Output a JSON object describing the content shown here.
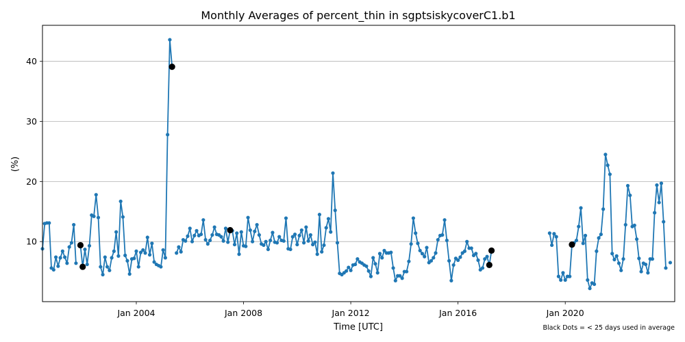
{
  "chart_data": {
    "type": "line",
    "title": "Monthly Averages of percent_thin in sgptsiskycoverC1.b1",
    "xlabel": "Time [UTC]",
    "ylabel": "(%)",
    "note": "Black Dots = < 25 days used in average",
    "xlim": [
      "2000-07",
      "2024-02"
    ],
    "ylim": [
      0,
      46
    ],
    "yticks": [
      10,
      20,
      30,
      40
    ],
    "xticks": [
      {
        "date": "2004-01",
        "label": "Jan 2004"
      },
      {
        "date": "2008-01",
        "label": "Jan 2008"
      },
      {
        "date": "2012-01",
        "label": "Jan 2012"
      },
      {
        "date": "2016-01",
        "label": "Jan 2016"
      },
      {
        "date": "2020-01",
        "label": "Jan 2020"
      }
    ],
    "grid": {
      "y": true,
      "x": false
    },
    "series": [
      {
        "color": "#1f77b4",
        "points": [
          [
            "2000-07",
            8.8
          ],
          [
            "2000-08",
            13.0
          ],
          [
            "2000-09",
            13.1
          ],
          [
            "2000-10",
            13.1
          ],
          [
            "2000-11",
            5.6
          ],
          [
            "2000-12",
            5.3
          ],
          [
            "2001-01",
            7.4
          ],
          [
            "2001-02",
            5.9
          ],
          [
            "2001-03",
            7.3
          ],
          [
            "2001-04",
            8.4
          ],
          [
            "2001-05",
            7.4
          ],
          [
            "2001-06",
            6.4
          ],
          [
            "2001-07",
            9.1
          ],
          [
            "2001-08",
            9.8
          ],
          [
            "2001-09",
            12.8
          ],
          [
            "2001-10",
            6.4
          ],
          null,
          [
            "2001-12",
            9.4
          ],
          [
            "2002-01",
            5.8
          ],
          [
            "2002-02",
            8.7
          ],
          [
            "2002-03",
            6.2
          ],
          [
            "2002-04",
            9.3
          ],
          [
            "2002-05",
            14.4
          ],
          [
            "2002-06",
            14.2
          ],
          [
            "2002-07",
            17.8
          ],
          [
            "2002-08",
            14.0
          ],
          [
            "2002-09",
            5.8
          ],
          [
            "2002-10",
            4.5
          ],
          [
            "2002-11",
            7.4
          ],
          [
            "2002-12",
            5.8
          ],
          [
            "2003-01",
            5.2
          ],
          [
            "2003-02",
            7.3
          ],
          [
            "2003-03",
            8.4
          ],
          [
            "2003-04",
            11.6
          ],
          [
            "2003-05",
            7.6
          ],
          [
            "2003-06",
            16.7
          ],
          [
            "2003-07",
            14.1
          ],
          [
            "2003-08",
            7.7
          ],
          [
            "2003-09",
            6.8
          ],
          [
            "2003-10",
            4.6
          ],
          [
            "2003-11",
            7.1
          ],
          [
            "2003-12",
            7.2
          ],
          [
            "2004-01",
            8.4
          ],
          [
            "2004-02",
            5.8
          ],
          [
            "2004-03",
            8.2
          ],
          [
            "2004-04",
            8.6
          ],
          [
            "2004-05",
            8.1
          ],
          [
            "2004-06",
            10.7
          ],
          [
            "2004-07",
            7.8
          ],
          [
            "2004-08",
            9.7
          ],
          [
            "2004-09",
            6.6
          ],
          [
            "2004-10",
            6.2
          ],
          [
            "2004-11",
            6.0
          ],
          [
            "2004-12",
            5.8
          ],
          [
            "2005-01",
            8.6
          ],
          [
            "2005-02",
            7.3
          ],
          [
            "2005-03",
            27.8
          ],
          [
            "2005-04",
            43.6
          ],
          [
            "2005-05",
            39.1
          ],
          null,
          [
            "2005-07",
            8.1
          ],
          [
            "2005-08",
            9.1
          ],
          [
            "2005-09",
            8.3
          ],
          [
            "2005-10",
            10.3
          ],
          [
            "2005-11",
            10.1
          ],
          [
            "2005-12",
            10.9
          ],
          [
            "2006-01",
            12.2
          ],
          [
            "2006-02",
            10.0
          ],
          [
            "2006-03",
            11.0
          ],
          [
            "2006-04",
            11.8
          ],
          [
            "2006-05",
            11.0
          ],
          [
            "2006-06",
            11.2
          ],
          [
            "2006-07",
            13.6
          ],
          [
            "2006-08",
            10.3
          ],
          [
            "2006-09",
            9.6
          ],
          [
            "2006-10",
            10.2
          ],
          [
            "2006-11",
            11.1
          ],
          [
            "2006-12",
            12.4
          ],
          [
            "2007-01",
            11.2
          ],
          [
            "2007-02",
            11.1
          ],
          [
            "2007-03",
            10.8
          ],
          [
            "2007-04",
            10.1
          ],
          [
            "2007-05",
            12.2
          ],
          [
            "2007-06",
            9.9
          ],
          [
            "2007-07",
            11.9
          ],
          [
            "2007-08",
            11.8
          ],
          [
            "2007-09",
            9.5
          ],
          [
            "2007-10",
            11.4
          ],
          [
            "2007-11",
            7.9
          ],
          [
            "2007-12",
            11.6
          ],
          [
            "2008-01",
            9.3
          ],
          [
            "2008-02",
            9.2
          ],
          [
            "2008-03",
            14.0
          ],
          [
            "2008-04",
            11.9
          ],
          [
            "2008-05",
            10.0
          ],
          [
            "2008-06",
            11.7
          ],
          [
            "2008-07",
            12.8
          ],
          [
            "2008-08",
            11.1
          ],
          [
            "2008-09",
            9.6
          ],
          [
            "2008-10",
            9.4
          ],
          [
            "2008-11",
            10.0
          ],
          [
            "2008-12",
            8.7
          ],
          [
            "2009-01",
            10.2
          ],
          [
            "2009-02",
            11.5
          ],
          [
            "2009-03",
            9.9
          ],
          [
            "2009-04",
            9.8
          ],
          [
            "2009-05",
            10.8
          ],
          [
            "2009-06",
            10.2
          ],
          [
            "2009-07",
            10.1
          ],
          [
            "2009-08",
            13.9
          ],
          [
            "2009-09",
            8.8
          ],
          [
            "2009-10",
            8.7
          ],
          [
            "2009-11",
            10.8
          ],
          [
            "2009-12",
            11.2
          ],
          [
            "2010-01",
            9.5
          ],
          [
            "2010-02",
            11.0
          ],
          [
            "2010-03",
            11.9
          ],
          [
            "2010-04",
            9.8
          ],
          [
            "2010-05",
            12.4
          ],
          [
            "2010-06",
            10.1
          ],
          [
            "2010-07",
            11.1
          ],
          [
            "2010-08",
            9.5
          ],
          [
            "2010-09",
            9.9
          ],
          [
            "2010-10",
            7.9
          ],
          [
            "2010-11",
            14.5
          ],
          [
            "2010-12",
            8.3
          ],
          [
            "2011-01",
            9.4
          ],
          [
            "2011-02",
            12.3
          ],
          [
            "2011-03",
            13.8
          ],
          [
            "2011-04",
            11.6
          ],
          [
            "2011-05",
            21.4
          ],
          [
            "2011-06",
            15.2
          ],
          [
            "2011-07",
            9.8
          ],
          [
            "2011-08",
            4.7
          ],
          [
            "2011-09",
            4.5
          ],
          [
            "2011-10",
            4.8
          ],
          [
            "2011-11",
            5.1
          ],
          [
            "2011-12",
            5.7
          ],
          [
            "2012-01",
            5.2
          ],
          [
            "2012-02",
            6.1
          ],
          [
            "2012-03",
            6.2
          ],
          [
            "2012-04",
            7.1
          ],
          [
            "2012-05",
            6.6
          ],
          [
            "2012-06",
            6.4
          ],
          [
            "2012-07",
            6.1
          ],
          [
            "2012-08",
            5.9
          ],
          [
            "2012-09",
            5.1
          ],
          [
            "2012-10",
            4.2
          ],
          [
            "2012-11",
            7.3
          ],
          [
            "2012-12",
            6.3
          ],
          [
            "2013-01",
            4.8
          ],
          [
            "2013-02",
            8.0
          ],
          [
            "2013-03",
            7.3
          ],
          [
            "2013-04",
            8.5
          ],
          [
            "2013-05",
            8.1
          ],
          [
            "2013-06",
            8.1
          ],
          [
            "2013-07",
            8.2
          ],
          [
            "2013-08",
            5.6
          ],
          [
            "2013-09",
            3.5
          ],
          [
            "2013-10",
            4.3
          ],
          [
            "2013-11",
            4.3
          ],
          [
            "2013-12",
            3.9
          ],
          [
            "2014-01",
            5.0
          ],
          [
            "2014-02",
            5.0
          ],
          [
            "2014-03",
            6.7
          ],
          [
            "2014-04",
            9.6
          ],
          [
            "2014-05",
            13.9
          ],
          [
            "2014-06",
            11.4
          ],
          [
            "2014-07",
            9.7
          ],
          [
            "2014-08",
            8.5
          ],
          [
            "2014-09",
            8.0
          ],
          [
            "2014-10",
            7.5
          ],
          [
            "2014-11",
            9.0
          ],
          [
            "2014-12",
            6.5
          ],
          [
            "2015-01",
            6.8
          ],
          [
            "2015-02",
            7.3
          ],
          [
            "2015-03",
            8.1
          ],
          [
            "2015-04",
            10.3
          ],
          [
            "2015-05",
            11.0
          ],
          [
            "2015-06",
            11.1
          ],
          [
            "2015-07",
            13.6
          ],
          [
            "2015-08",
            10.2
          ],
          [
            "2015-09",
            6.8
          ],
          [
            "2015-10",
            3.5
          ],
          [
            "2015-11",
            6.1
          ],
          [
            "2015-12",
            7.2
          ],
          [
            "2016-01",
            6.9
          ],
          [
            "2016-02",
            7.4
          ],
          [
            "2016-03",
            8.1
          ],
          [
            "2016-04",
            8.4
          ],
          [
            "2016-05",
            10.0
          ],
          [
            "2016-06",
            8.9
          ],
          [
            "2016-07",
            8.9
          ],
          [
            "2016-08",
            7.7
          ],
          [
            "2016-09",
            8.0
          ],
          [
            "2016-10",
            6.9
          ],
          [
            "2016-11",
            5.3
          ],
          [
            "2016-12",
            5.6
          ],
          [
            "2017-01",
            7.1
          ],
          [
            "2017-02",
            7.5
          ],
          [
            "2017-03",
            6.1
          ],
          [
            "2017-04",
            8.5
          ],
          null,
          [
            "2019-06",
            11.4
          ],
          [
            "2019-07",
            9.4
          ],
          [
            "2019-08",
            11.3
          ],
          [
            "2019-09",
            10.8
          ],
          [
            "2019-10",
            4.2
          ],
          [
            "2019-11",
            3.6
          ],
          [
            "2019-12",
            4.8
          ],
          [
            "2020-01",
            3.6
          ],
          [
            "2020-02",
            4.2
          ],
          [
            "2020-03",
            4.2
          ],
          [
            "2020-04",
            9.5
          ],
          [
            "2020-05",
            9.8
          ],
          [
            "2020-06",
            10.2
          ],
          [
            "2020-07",
            12.5
          ],
          [
            "2020-08",
            15.6
          ],
          [
            "2020-09",
            9.7
          ],
          [
            "2020-10",
            11.0
          ],
          [
            "2020-11",
            3.6
          ],
          [
            "2020-12",
            2.2
          ],
          [
            "2021-01",
            3.1
          ],
          [
            "2021-02",
            2.9
          ],
          [
            "2021-03",
            8.4
          ],
          [
            "2021-04",
            10.6
          ],
          [
            "2021-05",
            11.2
          ],
          [
            "2021-06",
            15.4
          ],
          [
            "2021-07",
            24.5
          ],
          [
            "2021-08",
            22.7
          ],
          [
            "2021-09",
            21.2
          ],
          [
            "2021-10",
            8.0
          ],
          [
            "2021-11",
            7.0
          ],
          [
            "2021-12",
            7.6
          ],
          [
            "2022-01",
            6.4
          ],
          [
            "2022-02",
            5.2
          ],
          [
            "2022-03",
            7.1
          ],
          [
            "2022-04",
            12.8
          ],
          [
            "2022-05",
            19.3
          ],
          [
            "2022-06",
            17.7
          ],
          [
            "2022-07",
            12.5
          ],
          [
            "2022-08",
            12.7
          ],
          [
            "2022-09",
            10.4
          ],
          [
            "2022-10",
            7.2
          ],
          [
            "2022-11",
            5.0
          ],
          [
            "2022-12",
            6.4
          ],
          [
            "2023-01",
            6.2
          ],
          [
            "2023-02",
            4.8
          ],
          [
            "2023-03",
            7.1
          ],
          [
            "2023-04",
            7.1
          ],
          [
            "2023-05",
            14.8
          ],
          [
            "2023-06",
            19.4
          ],
          [
            "2023-07",
            16.5
          ],
          [
            "2023-08",
            19.7
          ],
          [
            "2023-09",
            13.3
          ],
          [
            "2023-10",
            5.6
          ],
          null,
          [
            "2023-12",
            6.5
          ]
        ]
      }
    ],
    "low_coverage_points": [
      [
        "2001-12",
        9.4
      ],
      [
        "2002-01",
        5.8
      ],
      [
        "2005-05",
        39.1
      ],
      [
        "2007-07",
        11.9
      ],
      [
        "2017-03",
        6.1
      ],
      [
        "2017-04",
        8.5
      ],
      [
        "2020-04",
        9.5
      ]
    ],
    "low_coverage_color": "#000000"
  }
}
